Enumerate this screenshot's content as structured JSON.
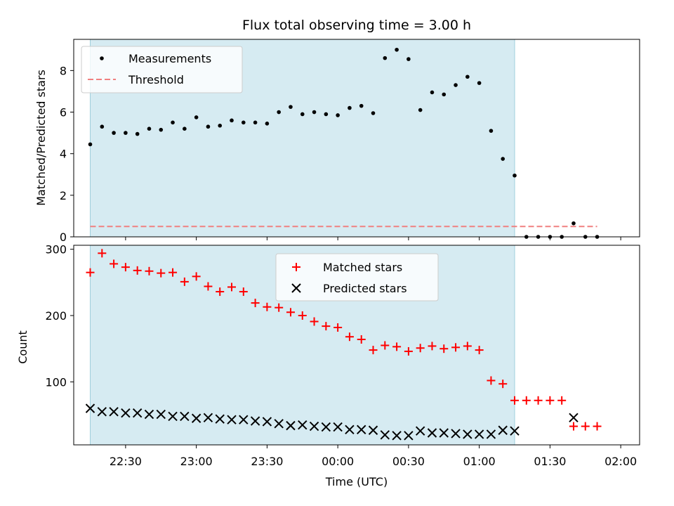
{
  "chart_data": [
    {
      "type": "scatter",
      "title": "Flux total observing time = 3.00 h",
      "ylabel": "Matched/Predicted stars",
      "ylim": [
        0,
        9.5
      ],
      "yticks": [
        0,
        2,
        4,
        6,
        8
      ],
      "x_range": [
        "22:08",
        "02:08"
      ],
      "shaded_window": [
        "22:15",
        "01:15"
      ],
      "shade_color": "#add8e6",
      "legend_position": "upper left",
      "series": [
        {
          "name": "Measurements",
          "marker": "dot",
          "color": "#000000",
          "points": [
            [
              "22:15",
              4.45
            ],
            [
              "22:20",
              5.3
            ],
            [
              "22:25",
              5.0
            ],
            [
              "22:30",
              5.0
            ],
            [
              "22:35",
              4.95
            ],
            [
              "22:40",
              5.2
            ],
            [
              "22:45",
              5.15
            ],
            [
              "22:50",
              5.5
            ],
            [
              "22:55",
              5.2
            ],
            [
              "23:00",
              5.75
            ],
            [
              "23:05",
              5.3
            ],
            [
              "23:10",
              5.35
            ],
            [
              "23:15",
              5.6
            ],
            [
              "23:20",
              5.5
            ],
            [
              "23:25",
              5.5
            ],
            [
              "23:30",
              5.45
            ],
            [
              "23:35",
              6.0
            ],
            [
              "23:40",
              6.25
            ],
            [
              "23:45",
              5.9
            ],
            [
              "23:50",
              6.0
            ],
            [
              "23:55",
              5.9
            ],
            [
              "00:00",
              5.85
            ],
            [
              "00:05",
              6.2
            ],
            [
              "00:10",
              6.3
            ],
            [
              "00:15",
              5.95
            ],
            [
              "00:20",
              8.6
            ],
            [
              "00:25",
              9.0
            ],
            [
              "00:30",
              8.55
            ],
            [
              "00:35",
              6.1
            ],
            [
              "00:40",
              6.95
            ],
            [
              "00:45",
              6.85
            ],
            [
              "00:50",
              7.3
            ],
            [
              "00:55",
              7.7
            ],
            [
              "01:00",
              7.4
            ],
            [
              "01:05",
              5.1
            ],
            [
              "01:10",
              3.75
            ],
            [
              "01:15",
              2.95
            ],
            [
              "01:20",
              0.0
            ],
            [
              "01:25",
              0.0
            ],
            [
              "01:30",
              0.0
            ],
            [
              "01:35",
              0.0
            ],
            [
              "01:40",
              0.65
            ],
            [
              "01:45",
              0.0
            ],
            [
              "01:50",
              0.0
            ]
          ]
        },
        {
          "name": "Threshold",
          "style": "dashed-line",
          "color": "#f08080",
          "value": 0.5,
          "x_span": [
            "22:15",
            "01:50"
          ]
        }
      ]
    },
    {
      "type": "scatter",
      "xlabel": "Time (UTC)",
      "ylabel": "Count",
      "ylim": [
        5,
        306
      ],
      "yticks": [
        100,
        200,
        300
      ],
      "xticks": [
        "22:30",
        "23:00",
        "23:30",
        "00:00",
        "00:30",
        "01:00",
        "01:30",
        "02:00"
      ],
      "x_range": [
        "22:08",
        "02:08"
      ],
      "shaded_window": [
        "22:15",
        "01:15"
      ],
      "shade_color": "#add8e6",
      "legend_position": "upper center",
      "x": [
        "22:15",
        "22:20",
        "22:25",
        "22:30",
        "22:35",
        "22:40",
        "22:45",
        "22:50",
        "22:55",
        "23:00",
        "23:05",
        "23:10",
        "23:15",
        "23:20",
        "23:25",
        "23:30",
        "23:35",
        "23:40",
        "23:45",
        "23:50",
        "23:55",
        "00:00",
        "00:05",
        "00:10",
        "00:15",
        "00:20",
        "00:25",
        "00:30",
        "00:35",
        "00:40",
        "00:45",
        "00:50",
        "00:55",
        "01:00",
        "01:05",
        "01:10",
        "01:15",
        "01:20",
        "01:25",
        "01:30",
        "01:35",
        "01:40",
        "01:45",
        "01:50"
      ],
      "series": [
        {
          "name": "Matched stars",
          "marker": "plus",
          "color": "#ff0000",
          "values": [
            265,
            294,
            278,
            273,
            268,
            267,
            264,
            265,
            251,
            259,
            244,
            236,
            243,
            236,
            219,
            213,
            212,
            205,
            200,
            191,
            184,
            182,
            168,
            164,
            148,
            155,
            153,
            146,
            151,
            154,
            150,
            152,
            154,
            148,
            102,
            97,
            72,
            72,
            72,
            72,
            72,
            33,
            33,
            33
          ]
        },
        {
          "name": "Predicted stars",
          "marker": "x",
          "color": "#000000",
          "values": [
            60,
            55,
            55,
            53,
            53,
            51,
            51,
            48,
            48,
            45,
            46,
            44,
            43,
            43,
            41,
            40,
            37,
            34,
            35,
            33,
            32,
            32,
            28,
            28,
            27,
            20,
            19,
            19,
            26,
            23,
            23,
            22,
            21,
            21,
            21,
            27,
            26,
            null,
            null,
            null,
            null,
            46,
            null,
            null
          ]
        }
      ]
    }
  ]
}
